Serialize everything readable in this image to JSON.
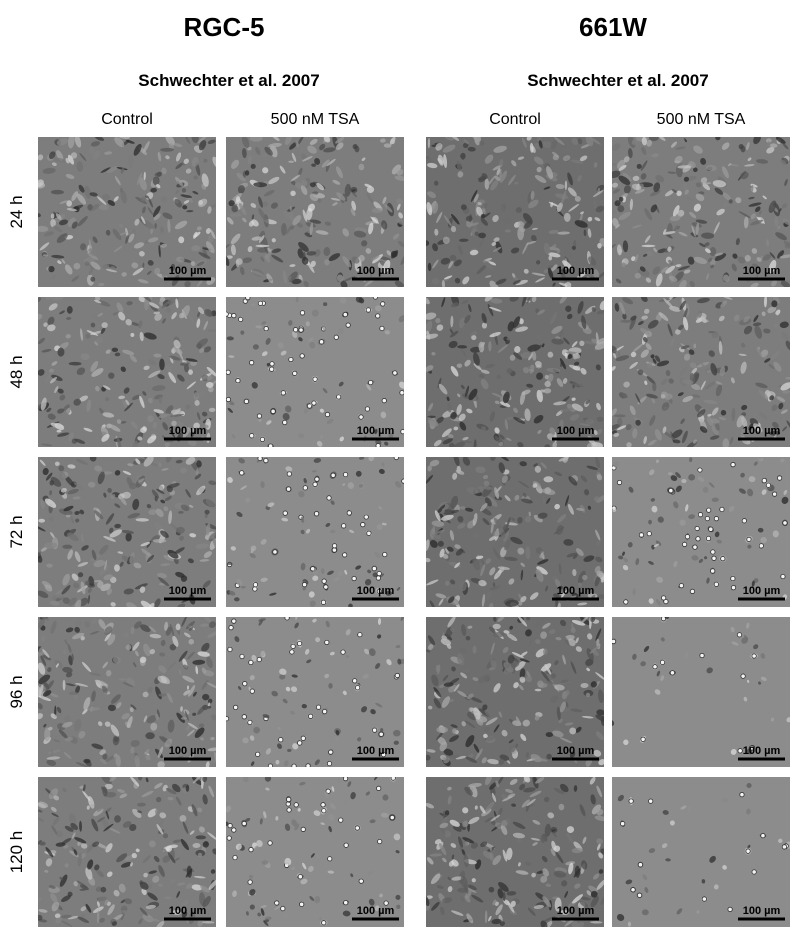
{
  "panels": [
    {
      "title": "RGC-5",
      "subtitle": "Schwechter et al. 2007",
      "columns": [
        "Control",
        "500 nM TSA"
      ]
    },
    {
      "title": "661W",
      "subtitle": "Schwechter et al. 2007",
      "columns": [
        "Control",
        "500 nM TSA"
      ]
    }
  ],
  "rows": [
    "24 h",
    "48 h",
    "72 h",
    "96 h",
    "120 h"
  ],
  "scale_bar": "100 µm"
}
